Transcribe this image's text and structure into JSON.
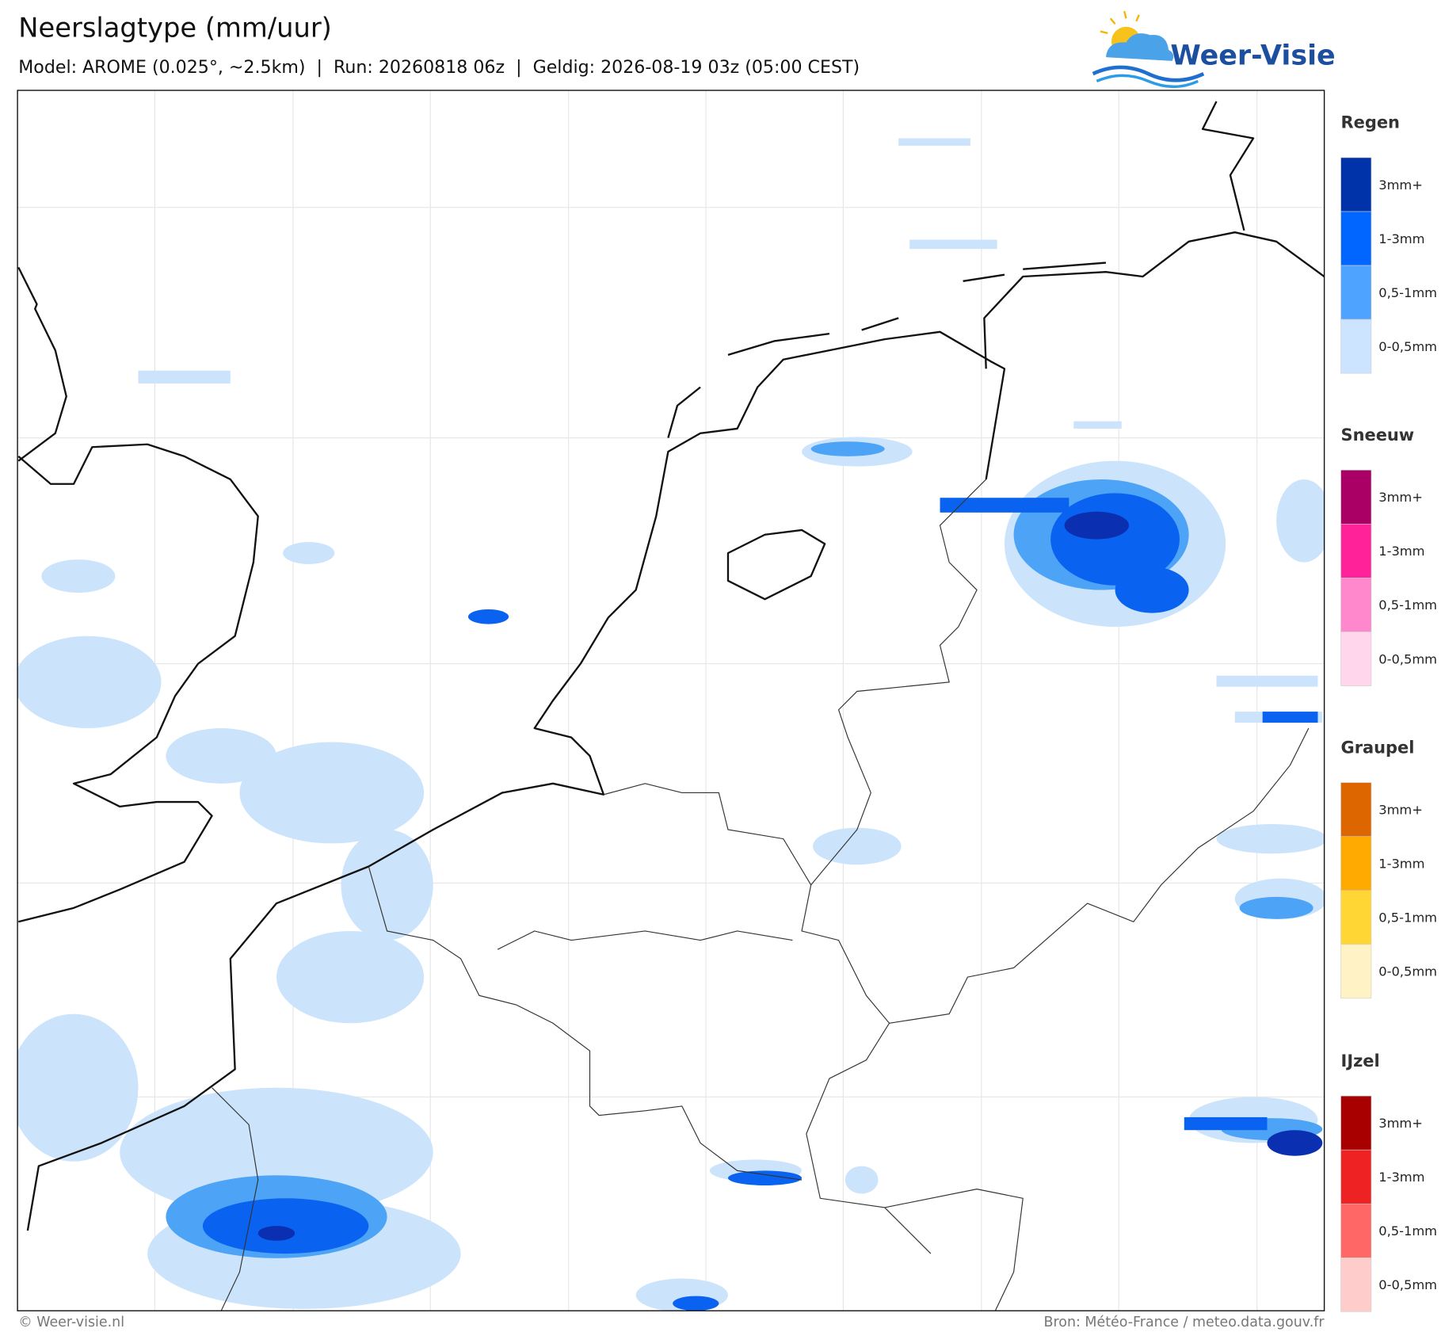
{
  "header": {
    "title": "Neerslagtype (mm/uur)",
    "subtitle": "Model: AROME (0.025°, ~2.5km)  |  Run: 20260818 06z  |  Geldig: 2026-08-19 03z (05:00 CEST)"
  },
  "logo": {
    "text": "Weer-Visie"
  },
  "legend": {
    "groups": [
      {
        "title": "Regen",
        "items": [
          {
            "label": "3mm+",
            "color": "#0033aa"
          },
          {
            "label": "1-3mm",
            "color": "#0066ff"
          },
          {
            "label": "0,5-1mm",
            "color": "#4da3ff"
          },
          {
            "label": "0-0,5mm",
            "color": "#cce4ff"
          }
        ]
      },
      {
        "title": "Sneeuw",
        "items": [
          {
            "label": "3mm+",
            "color": "#aa0066"
          },
          {
            "label": "1-3mm",
            "color": "#ff2299"
          },
          {
            "label": "0,5-1mm",
            "color": "#ff88cc"
          },
          {
            "label": "0-0,5mm",
            "color": "#ffd6ec"
          }
        ]
      },
      {
        "title": "Graupel",
        "items": [
          {
            "label": "3mm+",
            "color": "#dd6600"
          },
          {
            "label": "1-3mm",
            "color": "#ffaa00"
          },
          {
            "label": "0,5-1mm",
            "color": "#ffd633"
          },
          {
            "label": "0-0,5mm",
            "color": "#fff2c4"
          }
        ]
      },
      {
        "title": "IJzel",
        "items": [
          {
            "label": "3mm+",
            "color": "#a80000"
          },
          {
            "label": "1-3mm",
            "color": "#ee2222"
          },
          {
            "label": "0,5-1mm",
            "color": "#ff6666"
          },
          {
            "label": "0-0,5mm",
            "color": "#ffcccc"
          }
        ]
      }
    ]
  },
  "footer": {
    "credit": "© Weer-visie.nl",
    "source": "Bron: Météo-France / meteo.data.gouv.fr"
  }
}
